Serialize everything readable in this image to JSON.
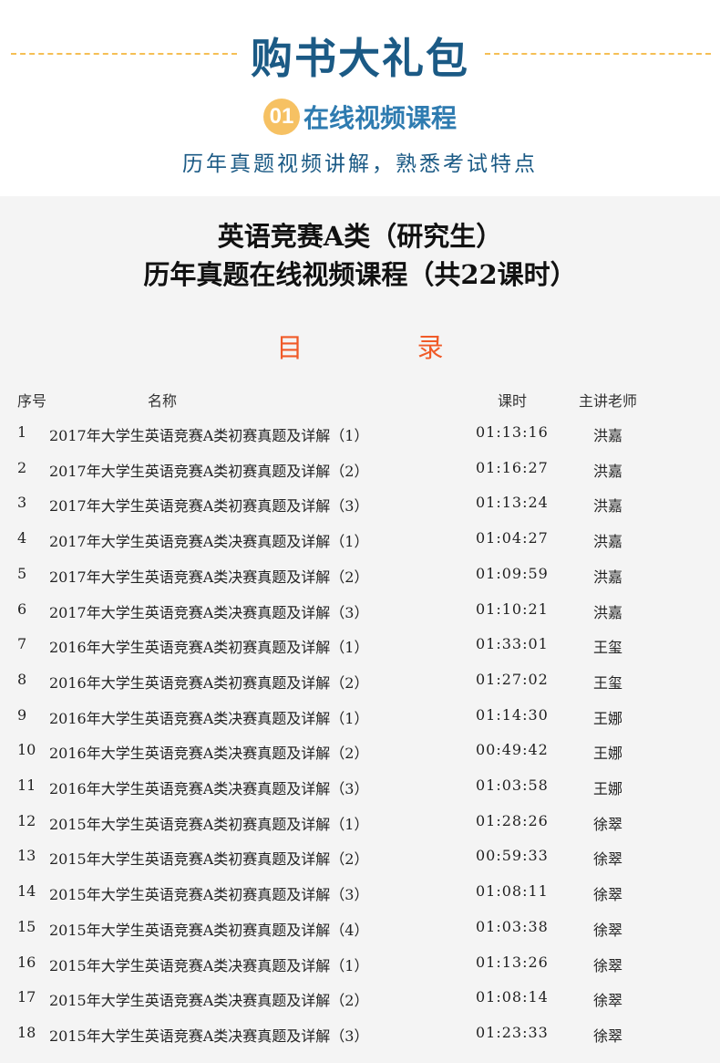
{
  "header": {
    "title": "购书大礼包",
    "section_number": "01",
    "section_title": "在线视频课程",
    "subtitle": "历年真题视频讲解，熟悉考试特点"
  },
  "course": {
    "title_line1": "英语竞赛A类（研究生）",
    "title_line2": "历年真题在线视频课程（共22课时）",
    "toc_label": "目 录"
  },
  "table": {
    "columns": [
      "序号",
      "名称",
      "课时",
      "主讲老师"
    ],
    "rows": [
      [
        "1",
        "2017年大学生英语竞赛A类初赛真题及详解（1）",
        "01:13:16",
        "洪嘉"
      ],
      [
        "2",
        "2017年大学生英语竞赛A类初赛真题及详解（2）",
        "01:16:27",
        "洪嘉"
      ],
      [
        "3",
        "2017年大学生英语竞赛A类初赛真题及详解（3）",
        "01:13:24",
        "洪嘉"
      ],
      [
        "4",
        "2017年大学生英语竞赛A类决赛真题及详解（1）",
        "01:04:27",
        "洪嘉"
      ],
      [
        "5",
        "2017年大学生英语竞赛A类决赛真题及详解（2）",
        "01:09:59",
        "洪嘉"
      ],
      [
        "6",
        "2017年大学生英语竞赛A类决赛真题及详解（3）",
        "01:10:21",
        "洪嘉"
      ],
      [
        "7",
        "2016年大学生英语竞赛A类初赛真题及详解（1）",
        "01:33:01",
        "王玺"
      ],
      [
        "8",
        "2016年大学生英语竞赛A类初赛真题及详解（2）",
        "01:27:02",
        "王玺"
      ],
      [
        "9",
        "2016年大学生英语竞赛A类决赛真题及详解（1）",
        "01:14:30",
        "王娜"
      ],
      [
        "10",
        "2016年大学生英语竞赛A类决赛真题及详解（2）",
        "00:49:42",
        "王娜"
      ],
      [
        "11",
        "2016年大学生英语竞赛A类决赛真题及详解（3）",
        "01:03:58",
        "王娜"
      ],
      [
        "12",
        "2015年大学生英语竞赛A类初赛真题及详解（1）",
        "01:28:26",
        "徐翠"
      ],
      [
        "13",
        "2015年大学生英语竞赛A类初赛真题及详解（2）",
        "00:59:33",
        "徐翠"
      ],
      [
        "14",
        "2015年大学生英语竞赛A类初赛真题及详解（3）",
        "01:08:11",
        "徐翠"
      ],
      [
        "15",
        "2015年大学生英语竞赛A类初赛真题及详解（4）",
        "01:03:38",
        "徐翠"
      ],
      [
        "16",
        "2015年大学生英语竞赛A类决赛真题及详解（1）",
        "01:13:26",
        "徐翠"
      ],
      [
        "17",
        "2015年大学生英语竞赛A类决赛真题及详解（2）",
        "01:08:14",
        "徐翠"
      ],
      [
        "18",
        "2015年大学生英语竞赛A类决赛真题及详解（3）",
        "01:23:33",
        "徐翠"
      ]
    ]
  },
  "colors": {
    "title": "#1b5a85",
    "accent": "#f6c163",
    "toc": "#f05a28"
  }
}
